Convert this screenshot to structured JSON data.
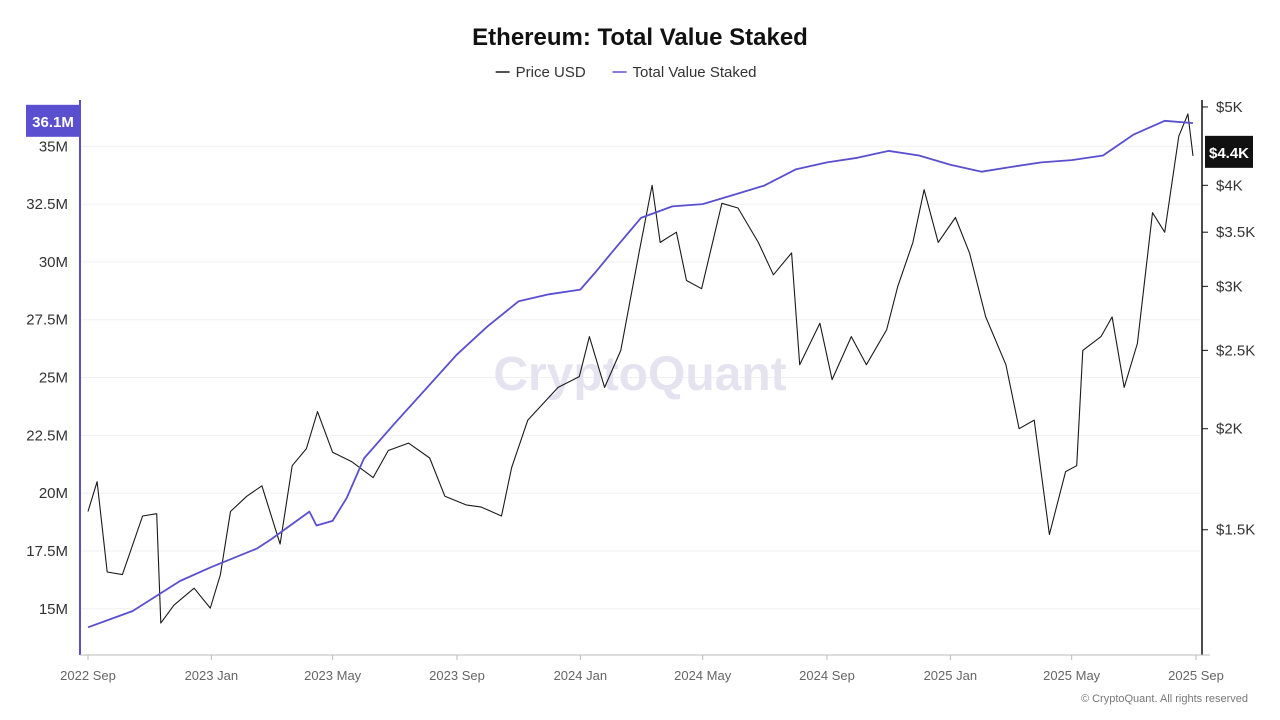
{
  "chart_data": {
    "type": "line",
    "title": "Ethereum: Total Value Staked",
    "legend": {
      "placement": "top-center"
    },
    "series": [
      {
        "name": "Price USD",
        "axis": "right",
        "color": "#1a1a1a",
        "points": [
          [
            "2022-09-01",
            1580
          ],
          [
            "2022-09-10",
            1720
          ],
          [
            "2022-09-20",
            1330
          ],
          [
            "2022-10-05",
            1320
          ],
          [
            "2022-10-25",
            1560
          ],
          [
            "2022-11-08",
            1570
          ],
          [
            "2022-11-12",
            1150
          ],
          [
            "2022-11-25",
            1210
          ],
          [
            "2022-12-15",
            1270
          ],
          [
            "2022-12-31",
            1200
          ],
          [
            "2023-01-10",
            1320
          ],
          [
            "2023-01-20",
            1580
          ],
          [
            "2023-02-05",
            1650
          ],
          [
            "2023-02-20",
            1700
          ],
          [
            "2023-03-10",
            1440
          ],
          [
            "2023-03-22",
            1800
          ],
          [
            "2023-04-05",
            1890
          ],
          [
            "2023-04-16",
            2100
          ],
          [
            "2023-05-01",
            1870
          ],
          [
            "2023-05-20",
            1820
          ],
          [
            "2023-06-10",
            1740
          ],
          [
            "2023-06-25",
            1880
          ],
          [
            "2023-07-15",
            1920
          ],
          [
            "2023-08-05",
            1840
          ],
          [
            "2023-08-20",
            1650
          ],
          [
            "2023-09-10",
            1610
          ],
          [
            "2023-09-25",
            1600
          ],
          [
            "2023-10-15",
            1560
          ],
          [
            "2023-10-25",
            1790
          ],
          [
            "2023-11-10",
            2050
          ],
          [
            "2023-12-10",
            2250
          ],
          [
            "2023-12-31",
            2320
          ],
          [
            "2024-01-10",
            2600
          ],
          [
            "2024-01-25",
            2250
          ],
          [
            "2024-02-10",
            2500
          ],
          [
            "2024-02-28",
            3300
          ],
          [
            "2024-03-12",
            4000
          ],
          [
            "2024-03-20",
            3400
          ],
          [
            "2024-04-05",
            3500
          ],
          [
            "2024-04-15",
            3050
          ],
          [
            "2024-04-30",
            2980
          ],
          [
            "2024-05-20",
            3800
          ],
          [
            "2024-06-05",
            3750
          ],
          [
            "2024-06-25",
            3400
          ],
          [
            "2024-07-10",
            3100
          ],
          [
            "2024-07-28",
            3300
          ],
          [
            "2024-08-05",
            2400
          ],
          [
            "2024-08-25",
            2700
          ],
          [
            "2024-09-06",
            2300
          ],
          [
            "2024-09-25",
            2600
          ],
          [
            "2024-10-10",
            2400
          ],
          [
            "2024-10-30",
            2650
          ],
          [
            "2024-11-10",
            3000
          ],
          [
            "2024-11-25",
            3400
          ],
          [
            "2024-12-06",
            3950
          ],
          [
            "2024-12-20",
            3400
          ],
          [
            "2025-01-06",
            3650
          ],
          [
            "2025-01-20",
            3300
          ],
          [
            "2025-02-05",
            2750
          ],
          [
            "2025-02-25",
            2400
          ],
          [
            "2025-03-10",
            2000
          ],
          [
            "2025-03-25",
            2050
          ],
          [
            "2025-04-09",
            1480
          ],
          [
            "2025-04-25",
            1770
          ],
          [
            "2025-05-06",
            1800
          ],
          [
            "2025-05-12",
            2500
          ],
          [
            "2025-05-30",
            2600
          ],
          [
            "2025-06-10",
            2750
          ],
          [
            "2025-06-22",
            2250
          ],
          [
            "2025-07-05",
            2550
          ],
          [
            "2025-07-20",
            3700
          ],
          [
            "2025-08-01",
            3500
          ],
          [
            "2025-08-15",
            4600
          ],
          [
            "2025-08-24",
            4900
          ],
          [
            "2025-08-29",
            4350
          ]
        ]
      },
      {
        "name": "Total Value Staked",
        "axis": "left",
        "color": "#5a4fcf",
        "points": [
          [
            "2022-09-01",
            14.2
          ],
          [
            "2022-10-15",
            14.9
          ],
          [
            "2022-12-01",
            16.2
          ],
          [
            "2023-01-01",
            16.8
          ],
          [
            "2023-02-15",
            17.6
          ],
          [
            "2023-03-01",
            18.0
          ],
          [
            "2023-04-08",
            19.2
          ],
          [
            "2023-04-15",
            18.6
          ],
          [
            "2023-05-01",
            18.8
          ],
          [
            "2023-05-15",
            19.8
          ],
          [
            "2023-06-01",
            21.5
          ],
          [
            "2023-07-01",
            23.0
          ],
          [
            "2023-08-01",
            24.5
          ],
          [
            "2023-09-01",
            26.0
          ],
          [
            "2023-10-01",
            27.2
          ],
          [
            "2023-11-01",
            28.3
          ],
          [
            "2023-12-01",
            28.6
          ],
          [
            "2024-01-01",
            28.8
          ],
          [
            "2024-01-15",
            29.5
          ],
          [
            "2024-02-01",
            30.4
          ],
          [
            "2024-03-01",
            31.9
          ],
          [
            "2024-04-01",
            32.4
          ],
          [
            "2024-05-01",
            32.5
          ],
          [
            "2024-06-01",
            32.9
          ],
          [
            "2024-07-01",
            33.3
          ],
          [
            "2024-08-01",
            34.0
          ],
          [
            "2024-09-01",
            34.3
          ],
          [
            "2024-10-01",
            34.5
          ],
          [
            "2024-11-01",
            34.8
          ],
          [
            "2024-12-01",
            34.6
          ],
          [
            "2025-01-01",
            34.2
          ],
          [
            "2025-02-01",
            33.9
          ],
          [
            "2025-03-01",
            34.1
          ],
          [
            "2025-04-01",
            34.3
          ],
          [
            "2025-05-01",
            34.4
          ],
          [
            "2025-06-01",
            34.6
          ],
          [
            "2025-07-01",
            35.5
          ],
          [
            "2025-08-01",
            36.1
          ],
          [
            "2025-08-29",
            36.0
          ]
        ]
      }
    ],
    "x_axis": {
      "ticks": [
        "2022 Sep",
        "2023 Jan",
        "2023 May",
        "2023 Sep",
        "2024 Jan",
        "2024 May",
        "2024 Sep",
        "2025 Jan",
        "2025 May",
        "2025 Sep"
      ],
      "tick_dates": [
        "2022-09-01",
        "2023-01-01",
        "2023-05-01",
        "2023-09-01",
        "2024-01-01",
        "2024-05-01",
        "2024-09-01",
        "2025-01-01",
        "2025-05-01",
        "2025-09-01"
      ],
      "range": [
        "2022-09-01",
        "2025-09-01"
      ]
    },
    "y_left": {
      "unit": "M",
      "range": [
        13.0,
        37.0
      ],
      "ticks": [
        15,
        17.5,
        20,
        22.5,
        25,
        27.5,
        30,
        32.5,
        35
      ],
      "tick_labels": [
        "15M",
        "17.5M",
        "20M",
        "22.5M",
        "25M",
        "27.5M",
        "30M",
        "32.5M",
        "35M"
      ]
    },
    "y_right": {
      "scale": "log",
      "range": [
        1050,
        5100
      ],
      "ticks": [
        1500,
        2000,
        2500,
        3000,
        3500,
        4000,
        5000
      ],
      "tick_labels": [
        "$1.5K",
        "$2K",
        "$2.5K",
        "$3K",
        "$3.5K",
        "$4K",
        "$5K"
      ]
    },
    "current_values": {
      "left": {
        "value": 36.1,
        "label": "36.1M",
        "color": "#5a4fcf"
      },
      "right": {
        "value": 4400,
        "label": "$4.4K",
        "color": "#111111"
      }
    },
    "grid": true
  },
  "watermark": "CryptoQuant",
  "copyright": "© CryptoQuant. All rights reserved"
}
